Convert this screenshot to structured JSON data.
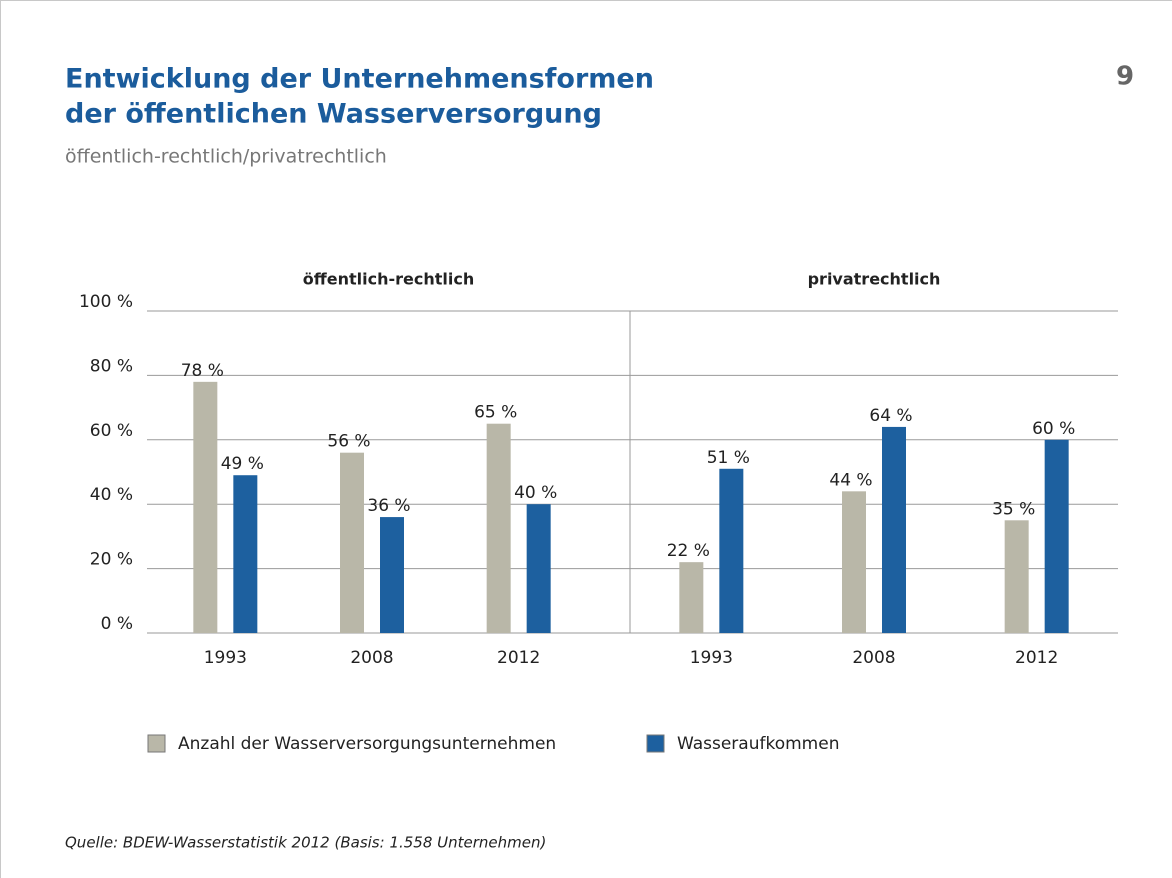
{
  "header": {
    "title": [
      "Entwicklung der Unternehmensformen",
      "der öffentlichen Wasserversorgung"
    ],
    "subtitle": "öffentlich-rechtlich/privatrechtlich",
    "page_number": "9"
  },
  "chart_data": [
    {
      "type": "bar",
      "title": "öffentlich-rechtlich",
      "categories": [
        "1993",
        "2008",
        "2012"
      ],
      "series": [
        {
          "name": "Anzahl der Wasserversorgungsunternehmen",
          "color": "#b9b7a8",
          "values": [
            78,
            56,
            65
          ],
          "value_labels": [
            "78 %",
            "56 %",
            "65 %"
          ]
        },
        {
          "name": "Wasseraufkommen",
          "color": "#1d609f",
          "values": [
            49,
            36,
            40
          ],
          "value_labels": [
            "49 %",
            "36 %",
            "40 %"
          ]
        }
      ],
      "ylim": [
        0,
        100
      ],
      "yticks": [
        {
          "value": 0,
          "label": "0 %"
        },
        {
          "value": 20,
          "label": "20 %"
        },
        {
          "value": 40,
          "label": "40 %"
        },
        {
          "value": 60,
          "label": "60 %"
        },
        {
          "value": 80,
          "label": "80 %"
        },
        {
          "value": 100,
          "label": "100 %"
        }
      ],
      "grid": true
    },
    {
      "type": "bar",
      "title": "privatrechtlich",
      "categories": [
        "1993",
        "2008",
        "2012"
      ],
      "series": [
        {
          "name": "Anzahl der Wasserversorgungsunternehmen",
          "color": "#b9b7a8",
          "values": [
            22,
            44,
            35
          ],
          "value_labels": [
            "22 %",
            "44 %",
            "35 %"
          ]
        },
        {
          "name": "Wasseraufkommen",
          "color": "#1d609f",
          "values": [
            51,
            64,
            60
          ],
          "value_labels": [
            "51 %",
            "64 %",
            "60 %"
          ]
        }
      ],
      "ylim": [
        0,
        100
      ],
      "yticks": [
        0,
        20,
        40,
        60,
        80,
        100
      ],
      "grid": true
    }
  ],
  "source": "Quelle: BDEW-Wasserstatistik 2012 (Basis: 1.558 Unternehmen)"
}
